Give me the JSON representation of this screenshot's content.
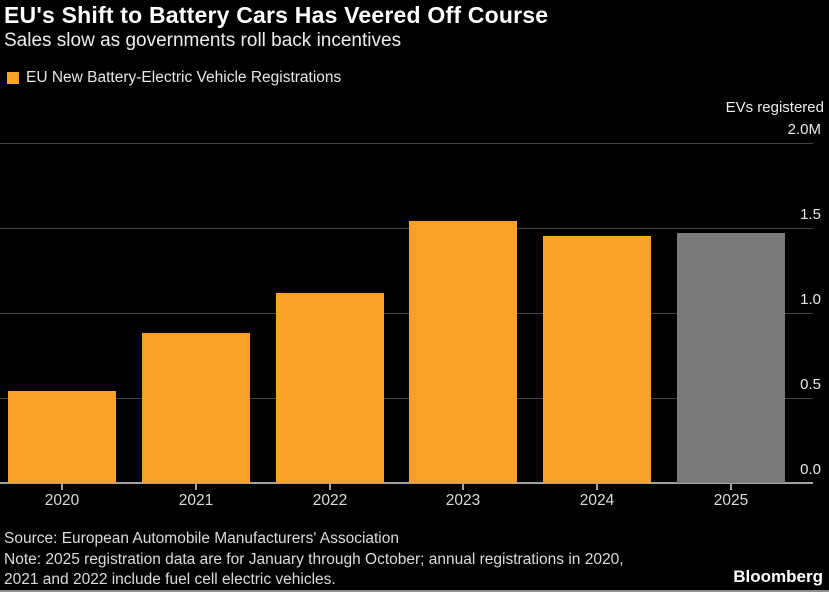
{
  "chart_data": {
    "type": "bar",
    "title": "EU's Shift to Battery Cars Has Veered Off Course",
    "subtitle": "Sales slow as governments roll back incentives",
    "legend_label": "EU New Battery-Electric Vehicle Registrations",
    "legend_position": "top-left",
    "ylabel": "EVs registered",
    "unit": "M",
    "categories": [
      "2020",
      "2021",
      "2022",
      "2023",
      "2024",
      "2025"
    ],
    "values": [
      0.54,
      0.88,
      1.12,
      1.54,
      1.45,
      1.47
    ],
    "bar_colors": [
      "orange",
      "orange",
      "orange",
      "orange",
      "orange",
      "gray"
    ],
    "ylim": [
      0,
      2.0
    ],
    "yticks": [
      {
        "value": 2.0,
        "label": "2.0M"
      },
      {
        "value": 1.5,
        "label": "1.5"
      },
      {
        "value": 1.0,
        "label": "1.0"
      },
      {
        "value": 0.5,
        "label": "0.5"
      },
      {
        "value": 0.0,
        "label": "0.0"
      }
    ],
    "grid": true
  },
  "colors": {
    "orange": "#FCA128",
    "gray": "#7A7A7A",
    "background": "#000000",
    "gridline": "#454545",
    "axis_line": "#A3A3A3",
    "bottom_border": "#8F8F8F"
  },
  "footer": {
    "source": "Source: European Automobile Manufacturers' Association",
    "note_lines": [
      "Note: 2025 registration data are for January through October; annual registrations in 2020,",
      "2021 and 2022 include fuel cell electric vehicles."
    ],
    "brand": "Bloomberg"
  }
}
